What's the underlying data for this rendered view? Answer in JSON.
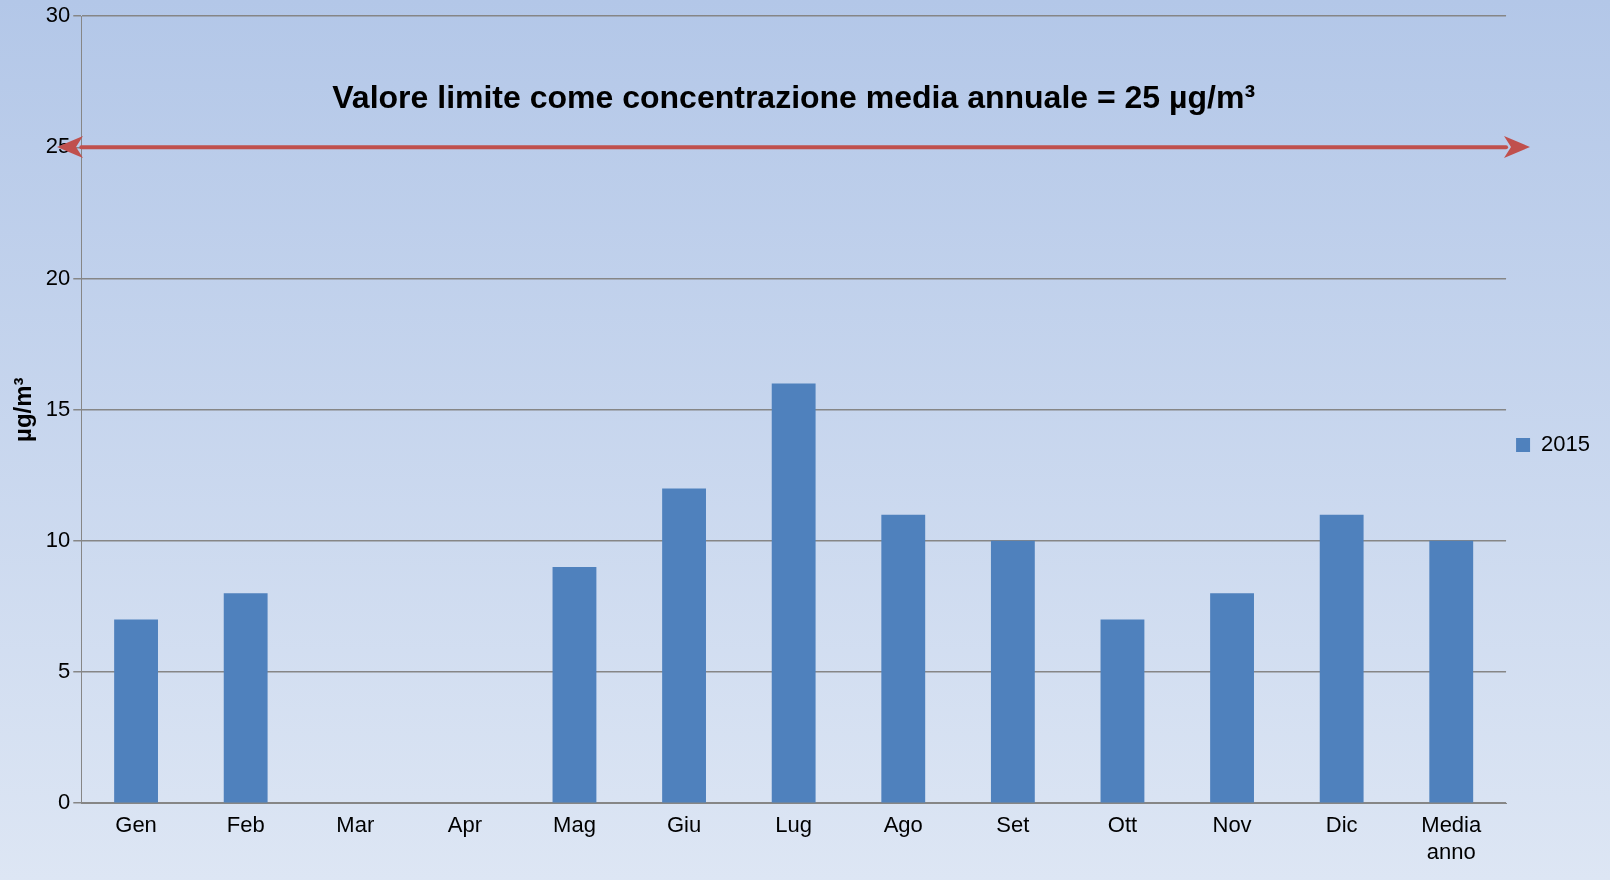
{
  "chart_data": {
    "type": "bar",
    "ylabel": "µg/m³",
    "categories": [
      "Gen",
      "Feb",
      "Mar",
      "Apr",
      "Mag",
      "Giu",
      "Lug",
      "Ago",
      "Set",
      "Ott",
      "Nov",
      "Dic",
      "Media anno"
    ],
    "series": [
      {
        "name": "2015",
        "color": "#4f81bd",
        "values": [
          7,
          8,
          null,
          null,
          9,
          12,
          16,
          11,
          10,
          7,
          8,
          11,
          10
        ]
      }
    ],
    "ylim": [
      0,
      30
    ],
    "yticks": [
      0,
      5,
      10,
      15,
      20,
      25,
      30
    ],
    "grid": "y",
    "legend": "right",
    "ref_lines": [
      {
        "axis": "y",
        "value": 25,
        "label": "Valore limite come concentrazione media annuale = 25 µg/m³",
        "color": "#c0504d"
      }
    ]
  }
}
